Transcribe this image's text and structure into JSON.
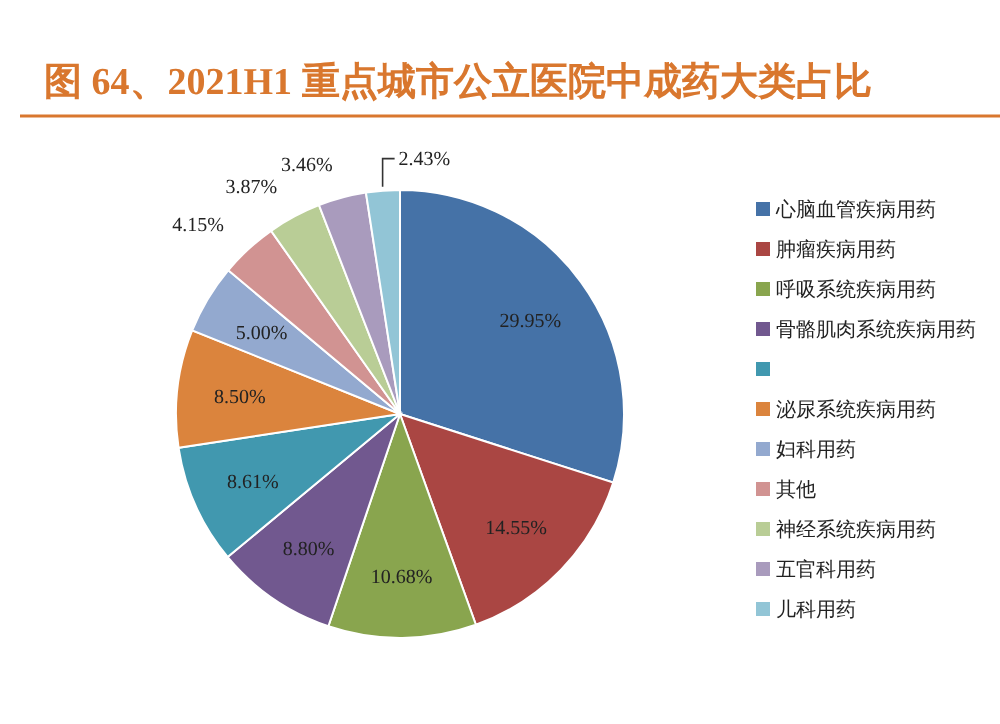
{
  "chart_data": {
    "type": "pie",
    "title": "图 64、2021H1 重点城市公立医院中成药大类占比",
    "categories": [
      "心脑血管疾病用药",
      "肿瘤疾病用药",
      "呼吸系统疾病用药",
      "骨骼肌肉系统疾病用药",
      null,
      "泌尿系统疾病用药",
      "妇科用药",
      "其他",
      "神经系统疾病用药",
      "五官科用药",
      "儿科用药"
    ],
    "values": [
      29.95,
      14.55,
      10.68,
      8.8,
      8.61,
      8.5,
      5.0,
      4.15,
      3.87,
      3.46,
      2.43
    ],
    "colors": [
      "#4572a7",
      "#aa4643",
      "#89a54e",
      "#71588f",
      "#4198af",
      "#db843d",
      "#93a9cf",
      "#d19392",
      "#b9cd96",
      "#a99bbd",
      "#92c5d6"
    ],
    "value_labels": [
      "29.95%",
      "14.55%",
      "10.68%",
      "8.80%",
      "8.61%",
      "8.50%",
      "5.00%",
      "4.15%",
      "3.87%",
      "3.46%",
      "2.43%"
    ],
    "legend": "right"
  }
}
